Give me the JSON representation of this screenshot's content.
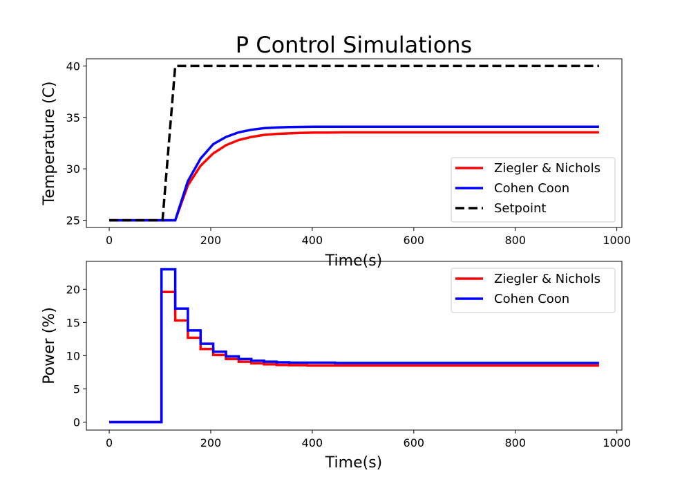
{
  "chart_data": [
    {
      "type": "line",
      "title": "P Control Simulations",
      "xlabel": "Time(s)",
      "ylabel": "Temperature (C)",
      "xlim": [
        -45,
        1010
      ],
      "ylim": [
        24.3,
        40.7
      ],
      "xticks": [
        0,
        200,
        400,
        600,
        800,
        1000
      ],
      "yticks": [
        25,
        30,
        35,
        40
      ],
      "legend_position": "lower-right",
      "series": [
        {
          "name": "Ziegler & Nichols",
          "color": "#ff0000",
          "style": "solid",
          "x": [
            0,
            130,
            155,
            180,
            205,
            230,
            255,
            280,
            305,
            330,
            355,
            380,
            405,
            430,
            460,
            500,
            600,
            700,
            800,
            965
          ],
          "y": [
            25,
            25,
            28.4,
            30.3,
            31.5,
            32.3,
            32.8,
            33.1,
            33.3,
            33.4,
            33.45,
            33.5,
            33.52,
            33.53,
            33.55,
            33.55,
            33.55,
            33.55,
            33.55,
            33.55
          ]
        },
        {
          "name": "Cohen Coon",
          "color": "#0000ff",
          "style": "solid",
          "x": [
            0,
            130,
            155,
            180,
            205,
            230,
            255,
            280,
            305,
            330,
            355,
            380,
            405,
            430,
            460,
            500,
            600,
            700,
            800,
            965
          ],
          "y": [
            25,
            25,
            28.8,
            31.0,
            32.4,
            33.1,
            33.55,
            33.8,
            33.95,
            34.02,
            34.06,
            34.08,
            34.1,
            34.1,
            34.1,
            34.1,
            34.1,
            34.1,
            34.1,
            34.1
          ]
        },
        {
          "name": "Setpoint",
          "color": "#000000",
          "style": "dashed",
          "x": [
            0,
            105,
            130,
            965
          ],
          "y": [
            25,
            25,
            40,
            40
          ]
        }
      ]
    },
    {
      "type": "step",
      "title": "",
      "xlabel": "Time(s)",
      "ylabel": "Power (%)",
      "xlim": [
        -45,
        1010
      ],
      "ylim": [
        -1.2,
        24.2
      ],
      "xticks": [
        0,
        200,
        400,
        600,
        800,
        1000
      ],
      "yticks": [
        0,
        5,
        10,
        15,
        20
      ],
      "legend_position": "upper-right",
      "series": [
        {
          "name": "Ziegler & Nichols",
          "color": "#ff0000",
          "style": "step",
          "x": [
            0,
            103,
            130,
            155,
            180,
            205,
            230,
            255,
            280,
            305,
            330,
            355,
            390,
            445,
            965
          ],
          "y": [
            0,
            19.6,
            15.3,
            12.7,
            11.0,
            10.1,
            9.5,
            9.1,
            8.85,
            8.7,
            8.6,
            8.55,
            8.5,
            8.5,
            8.5
          ]
        },
        {
          "name": "Cohen Coon",
          "color": "#0000ff",
          "style": "step",
          "x": [
            0,
            103,
            130,
            155,
            180,
            205,
            230,
            255,
            280,
            305,
            330,
            355,
            390,
            445,
            965
          ],
          "y": [
            0,
            23.0,
            17.1,
            13.8,
            11.8,
            10.6,
            9.9,
            9.5,
            9.25,
            9.1,
            9.0,
            8.95,
            8.95,
            8.9,
            8.9
          ]
        }
      ]
    }
  ]
}
